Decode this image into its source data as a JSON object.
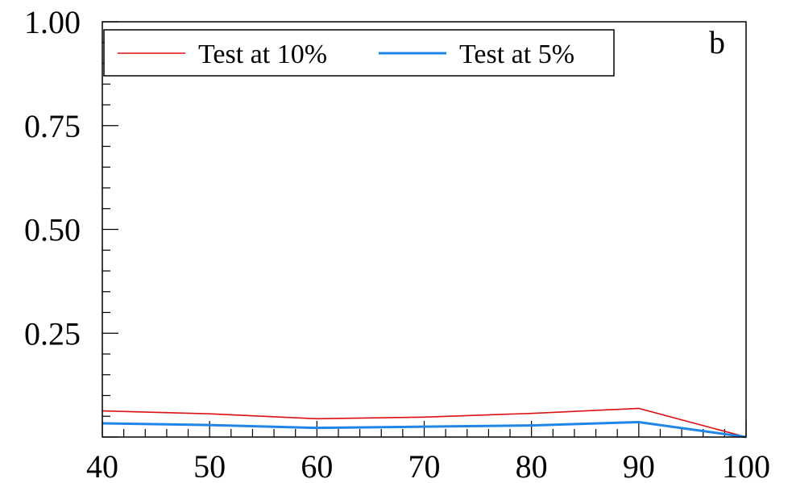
{
  "chart_data": {
    "type": "line",
    "panel_label": "b",
    "x": [
      40,
      50,
      60,
      70,
      80,
      90,
      100
    ],
    "xlim": [
      40,
      100
    ],
    "ylim": [
      0,
      1
    ],
    "xticks": [
      40,
      50,
      60,
      70,
      80,
      90,
      100
    ],
    "yticks": [
      0.25,
      0.5,
      0.75,
      1.0
    ],
    "ytick_labels": [
      "0.25",
      "0.50",
      "0.75",
      "1.00"
    ],
    "grid": false,
    "legend_position": "top-left",
    "series": [
      {
        "name": "Test at 10%",
        "color": "#dd1111",
        "values": [
          0.063,
          0.056,
          0.044,
          0.048,
          0.057,
          0.069,
          0.0
        ]
      },
      {
        "name": "Test at 5%",
        "color": "#1f86e8",
        "values": [
          0.033,
          0.029,
          0.022,
          0.025,
          0.028,
          0.036,
          0.0
        ]
      }
    ]
  }
}
